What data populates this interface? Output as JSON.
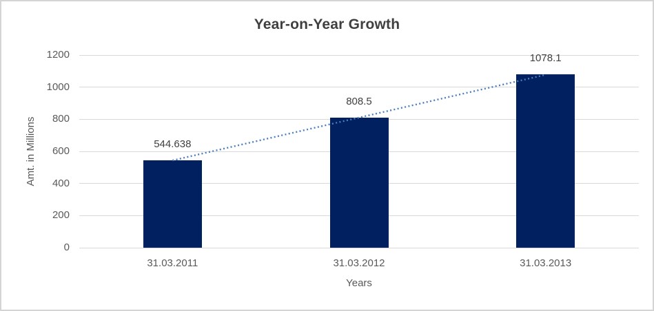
{
  "chart_data": {
    "type": "bar",
    "title": "Year-on-Year Growth",
    "xlabel": "Years",
    "ylabel": "Amt. in Millions",
    "categories": [
      "31.03.2011",
      "31.03.2012",
      "31.03.2013"
    ],
    "values": [
      544.638,
      808.5,
      1078.1
    ],
    "data_labels": [
      "544.638",
      "808.5",
      "1078.1"
    ],
    "yticks": [
      0,
      200,
      400,
      600,
      800,
      1000,
      1200
    ],
    "ylim": [
      0,
      1200
    ],
    "grid": true,
    "legend": "none",
    "trendline": {
      "type": "linear",
      "style": "dotted"
    }
  },
  "colors": {
    "bar_fill": "#002060",
    "trendline": "#4a7ebf",
    "gridline": "#d9d9d9",
    "axis_text": "#595959",
    "data_label_text": "#404040",
    "title_text": "#3f3f3f"
  }
}
